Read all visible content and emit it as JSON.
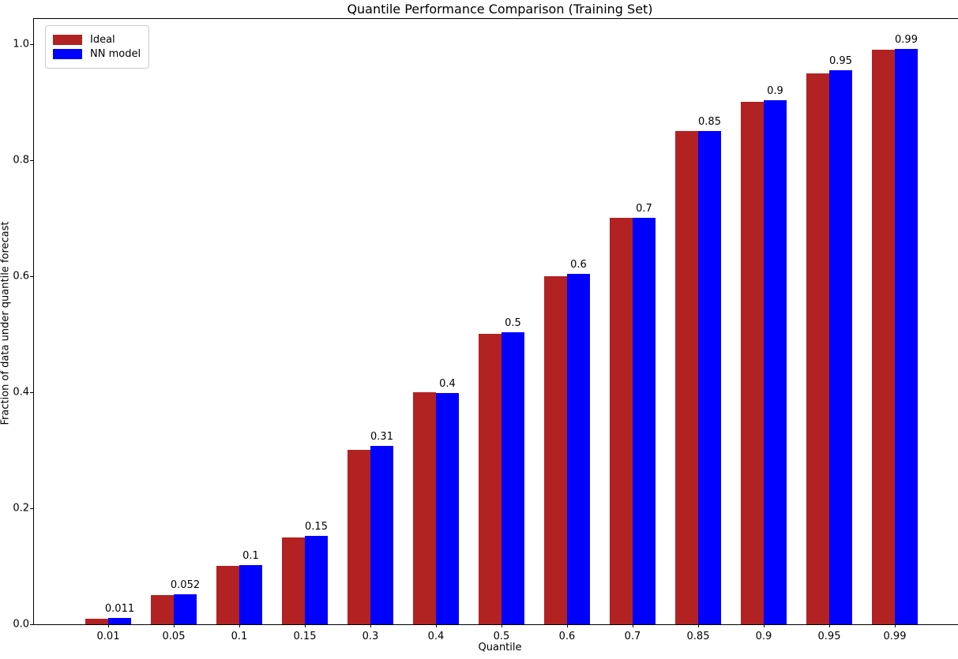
{
  "chart_data": {
    "type": "bar",
    "title": "Quantile Performance Comparison (Training Set)",
    "xlabel": "Quantile",
    "ylabel": "Fraction of data under quantile forecast",
    "categories": [
      "0.01",
      "0.05",
      "0.1",
      "0.15",
      "0.3",
      "0.4",
      "0.5",
      "0.6",
      "0.7",
      "0.85",
      "0.9",
      "0.95",
      "0.99"
    ],
    "series": [
      {
        "name": "Ideal",
        "color": "#B22222",
        "values": [
          0.01,
          0.05,
          0.1,
          0.15,
          0.3,
          0.4,
          0.5,
          0.6,
          0.7,
          0.85,
          0.9,
          0.95,
          0.99
        ]
      },
      {
        "name": "NN model",
        "color": "#0000FF",
        "values": [
          0.011,
          0.052,
          0.102,
          0.152,
          0.307,
          0.398,
          0.503,
          0.604,
          0.7,
          0.851,
          0.903,
          0.955,
          0.992
        ]
      }
    ],
    "bar_labels": [
      "0.011",
      "0.052",
      "0.1",
      "0.15",
      "0.31",
      "0.4",
      "0.5",
      "0.6",
      "0.7",
      "0.85",
      "0.9",
      "0.95",
      "0.99"
    ],
    "yticks": [
      "0.0",
      "0.2",
      "0.4",
      "0.6",
      "0.8",
      "1.0"
    ],
    "ylim": [
      0,
      1.043
    ],
    "grid": false,
    "legend_position": "upper left",
    "axis_color": "#000000",
    "background_color": "#ffffff"
  }
}
